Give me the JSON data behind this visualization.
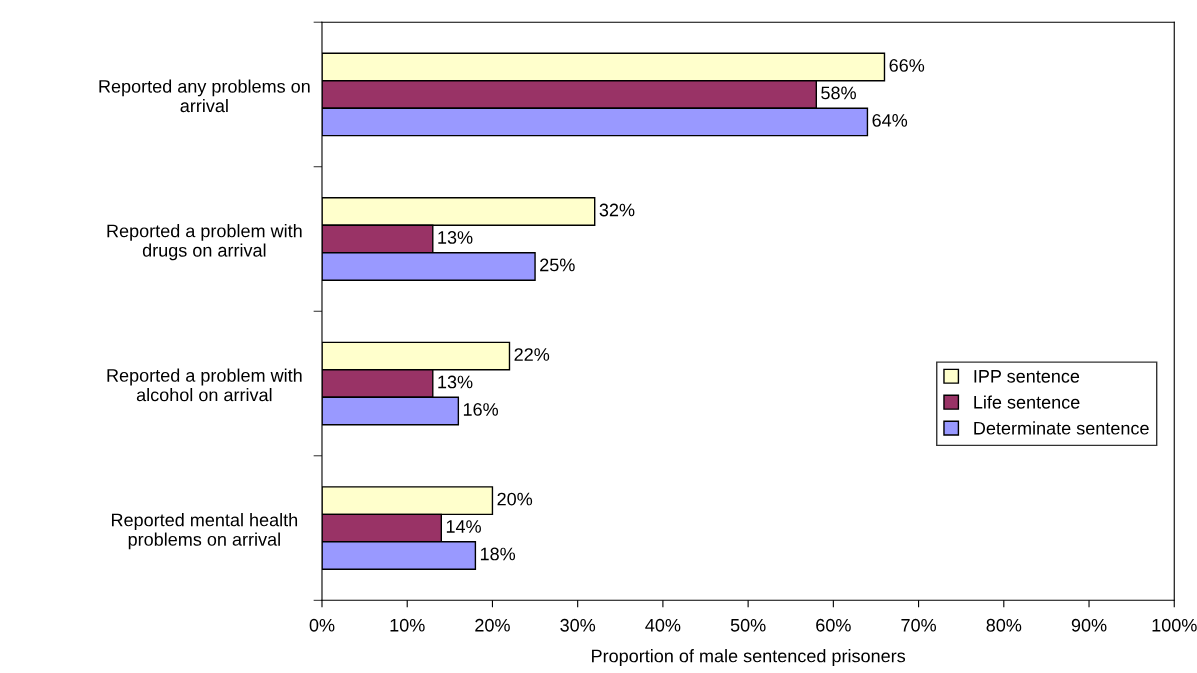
{
  "chart_data": {
    "type": "bar",
    "orientation": "horizontal",
    "xlabel": "Proportion of male sentenced prisoners",
    "categories": [
      "Reported any problems on\narrival",
      "Reported a problem with\ndrugs on arrival",
      "Reported a problem with\nalcohol on arrival",
      "Reported mental health\nproblems on arrival"
    ],
    "series": [
      {
        "name": "IPP sentence",
        "color": "#ffffcc",
        "values": [
          66,
          32,
          22,
          20
        ],
        "value_labels": [
          "66%",
          "32%",
          "22%",
          "20%"
        ]
      },
      {
        "name": "Life sentence",
        "color": "#993366",
        "values": [
          58,
          13,
          13,
          14
        ],
        "value_labels": [
          "58%",
          "13%",
          "13%",
          "14%"
        ]
      },
      {
        "name": "Determinate sentence",
        "color": "#9999ff",
        "values": [
          64,
          25,
          16,
          18
        ],
        "value_labels": [
          "64%",
          "25%",
          "16%",
          "18%"
        ]
      }
    ],
    "xlim": [
      0,
      100
    ],
    "xticks": [
      {
        "value": 0,
        "label": "0%"
      },
      {
        "value": 10,
        "label": "10%"
      },
      {
        "value": 20,
        "label": "20%"
      },
      {
        "value": 30,
        "label": "30%"
      },
      {
        "value": 40,
        "label": "40%"
      },
      {
        "value": 50,
        "label": "50%"
      },
      {
        "value": 60,
        "label": "60%"
      },
      {
        "value": 70,
        "label": "70%"
      },
      {
        "value": 80,
        "label": "80%"
      },
      {
        "value": 90,
        "label": "90%"
      },
      {
        "value": 100,
        "label": "100%"
      }
    ],
    "grid": false,
    "legend": "center right"
  }
}
